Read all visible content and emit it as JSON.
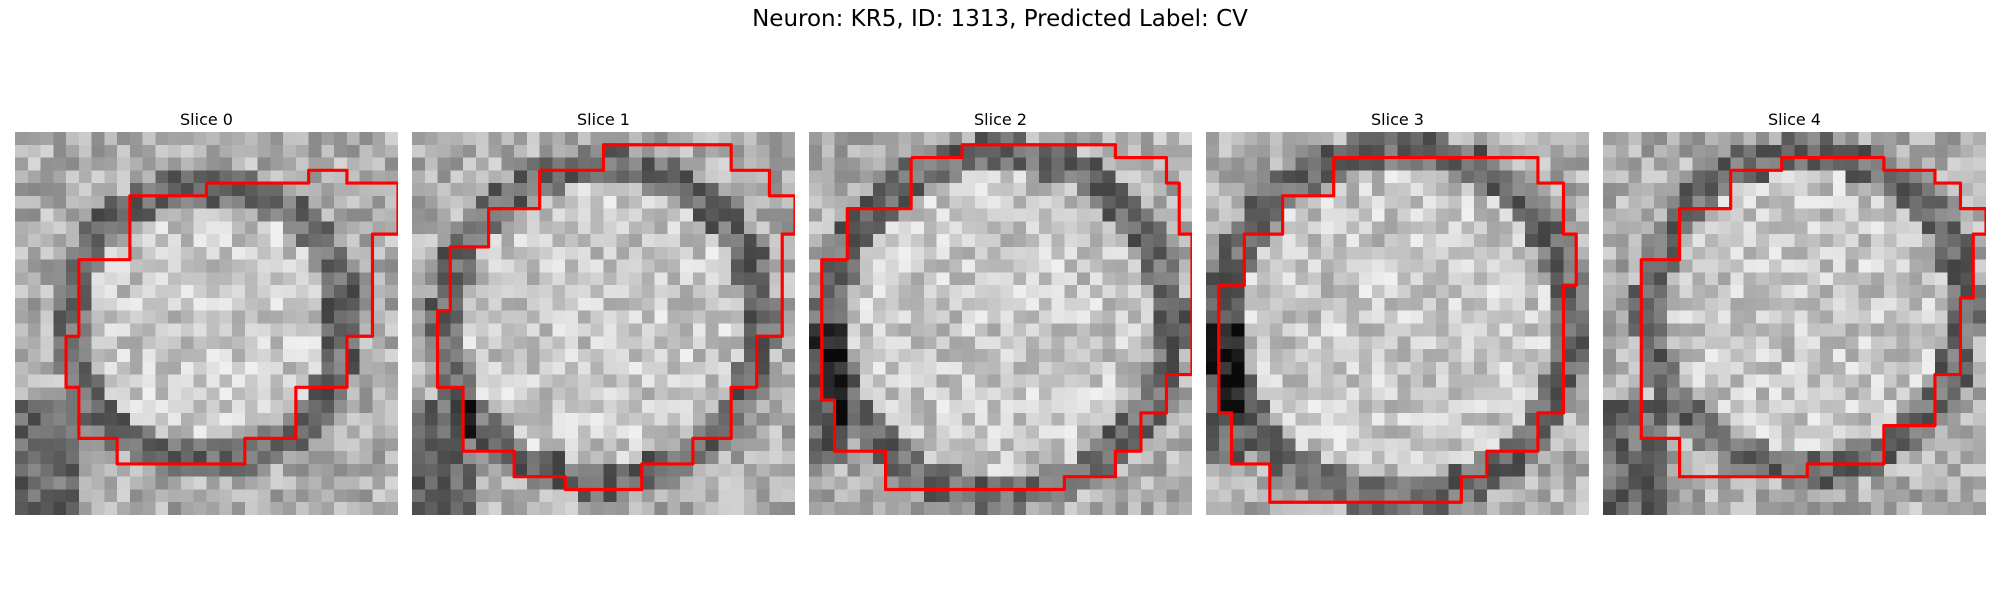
{
  "figure": {
    "title": "Neuron: KR5, ID: 1313, Predicted Label: CV"
  },
  "colormap": "gray",
  "outline_color": "#ff0000",
  "slices": [
    {
      "title": "Slice 0",
      "seed": 11,
      "boundary": [
        [
          15,
          4
        ],
        [
          23,
          3
        ],
        [
          26,
          4
        ],
        [
          30,
          4
        ],
        [
          30,
          8
        ],
        [
          28,
          16
        ],
        [
          26,
          20
        ],
        [
          22,
          24
        ],
        [
          18,
          26
        ],
        [
          12,
          26
        ],
        [
          8,
          24
        ],
        [
          5,
          20
        ],
        [
          4,
          16
        ],
        [
          5,
          10
        ],
        [
          9,
          5
        ]
      ],
      "ring_radius": 11.0,
      "ring_cx": 15,
      "ring_cy": 15,
      "dark_corner": "bottom-left"
    },
    {
      "title": "Slice 1",
      "seed": 23,
      "boundary": [
        [
          10,
          3
        ],
        [
          15,
          1
        ],
        [
          22,
          1
        ],
        [
          25,
          3
        ],
        [
          28,
          5
        ],
        [
          30,
          8
        ],
        [
          29,
          12
        ],
        [
          29,
          16
        ],
        [
          27,
          20
        ],
        [
          25,
          24
        ],
        [
          22,
          26
        ],
        [
          18,
          28
        ],
        [
          12,
          27
        ],
        [
          8,
          25
        ],
        [
          4,
          20
        ],
        [
          2,
          14
        ],
        [
          3,
          9
        ],
        [
          6,
          6
        ]
      ],
      "ring_radius": 12.5,
      "ring_cx": 15,
      "ring_cy": 15,
      "dark_corner": "bottom-left"
    },
    {
      "title": "Slice 2",
      "seed": 37,
      "boundary": [
        [
          8,
          2
        ],
        [
          12,
          1
        ],
        [
          20,
          1
        ],
        [
          24,
          2
        ],
        [
          28,
          4
        ],
        [
          29,
          8
        ],
        [
          30,
          12
        ],
        [
          30,
          19
        ],
        [
          28,
          22
        ],
        [
          26,
          25
        ],
        [
          24,
          27
        ],
        [
          20,
          28
        ],
        [
          10,
          28
        ],
        [
          6,
          25
        ],
        [
          2,
          21
        ],
        [
          1,
          15
        ],
        [
          1,
          10
        ],
        [
          3,
          6
        ]
      ],
      "ring_radius": 13.5,
      "ring_cx": 15,
      "ring_cy": 15,
      "dark_corner": "left"
    },
    {
      "title": "Slice 3",
      "seed": 51,
      "boundary": [
        [
          10,
          2
        ],
        [
          13,
          2
        ],
        [
          22,
          2
        ],
        [
          26,
          4
        ],
        [
          28,
          8
        ],
        [
          29,
          12
        ],
        [
          28,
          18
        ],
        [
          28,
          22
        ],
        [
          26,
          25
        ],
        [
          22,
          27
        ],
        [
          20,
          29
        ],
        [
          9,
          29
        ],
        [
          5,
          26
        ],
        [
          2,
          22
        ],
        [
          1,
          16
        ],
        [
          1,
          12
        ],
        [
          3,
          8
        ],
        [
          6,
          5
        ]
      ],
      "ring_radius": 13.8,
      "ring_cx": 15,
      "ring_cy": 15,
      "dark_corner": "left"
    },
    {
      "title": "Slice 4",
      "seed": 67,
      "boundary": [
        [
          10,
          3
        ],
        [
          14,
          2
        ],
        [
          18,
          2
        ],
        [
          22,
          3
        ],
        [
          26,
          4
        ],
        [
          28,
          6
        ],
        [
          30,
          8
        ],
        [
          29,
          13
        ],
        [
          28,
          19
        ],
        [
          26,
          23
        ],
        [
          22,
          26
        ],
        [
          16,
          27
        ],
        [
          10,
          27
        ],
        [
          6,
          24
        ],
        [
          3,
          20
        ],
        [
          3,
          15
        ],
        [
          3,
          10
        ],
        [
          6,
          6
        ]
      ],
      "ring_radius": 12.5,
      "ring_cx": 16,
      "ring_cy": 14,
      "dark_corner": "bottom-left"
    }
  ]
}
